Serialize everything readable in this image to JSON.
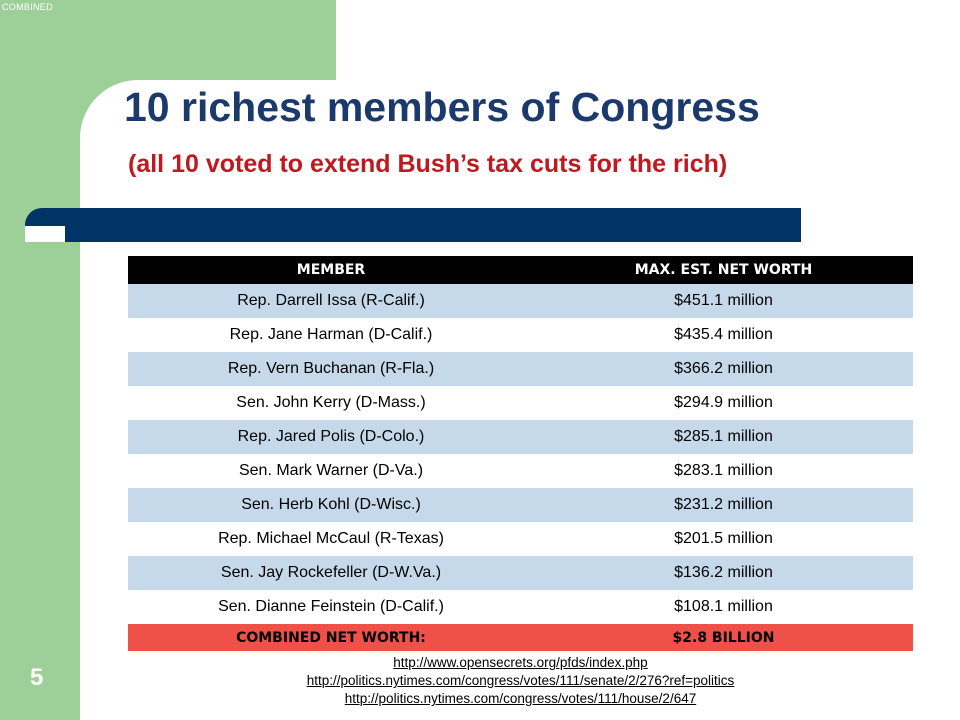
{
  "slide": {
    "corner_label": "COMBINED",
    "page_number": "5",
    "title": "10 richest members of Congress",
    "subtitle": "(all 10 voted to extend Bush’s tax cuts for the rich)"
  },
  "table": {
    "headers": [
      "MEMBER",
      "MAX. EST. NET WORTH"
    ],
    "rows": [
      {
        "member": "Rep. Darrell Issa (R-Calif.)",
        "worth": "$451.1 million"
      },
      {
        "member": "Rep. Jane Harman (D-Calif.)",
        "worth": "$435.4 million"
      },
      {
        "member": "Rep. Vern Buchanan (R-Fla.)",
        "worth": "$366.2 million"
      },
      {
        "member": "Sen. John Kerry (D-Mass.)",
        "worth": "$294.9 million"
      },
      {
        "member": "Rep. Jared Polis (D-Colo.)",
        "worth": "$285.1 million"
      },
      {
        "member": "Sen. Mark Warner (D-Va.)",
        "worth": "$283.1 million"
      },
      {
        "member": "Sen. Herb Kohl (D-Wisc.)",
        "worth": "$231.2 million"
      },
      {
        "member": "Rep. Michael McCaul (R-Texas)",
        "worth": "$201.5 million"
      },
      {
        "member": "Sen. Jay Rockefeller (D-W.Va.)",
        "worth": "$136.2 million"
      },
      {
        "member": "Sen. Dianne Feinstein (D-Calif.)",
        "worth": "$108.1 million"
      }
    ],
    "total_label": "COMBINED NET WORTH:",
    "total_value": "$2.8 BILLION"
  },
  "sources": [
    "http://www.opensecrets.org/pfds/index.php",
    "http://politics.nytimes.com/congress/votes/111/senate/2/276?ref=politics",
    "http://politics.nytimes.com/congress/votes/111/house/2/647"
  ],
  "colors": {
    "accent_green": "#9dcf98",
    "title_navy": "#1b3a6b",
    "subtitle_red": "#c0181e",
    "bar_navy": "#003366",
    "row_shade": "#c5d9ea",
    "total_red": "#ef5148"
  }
}
